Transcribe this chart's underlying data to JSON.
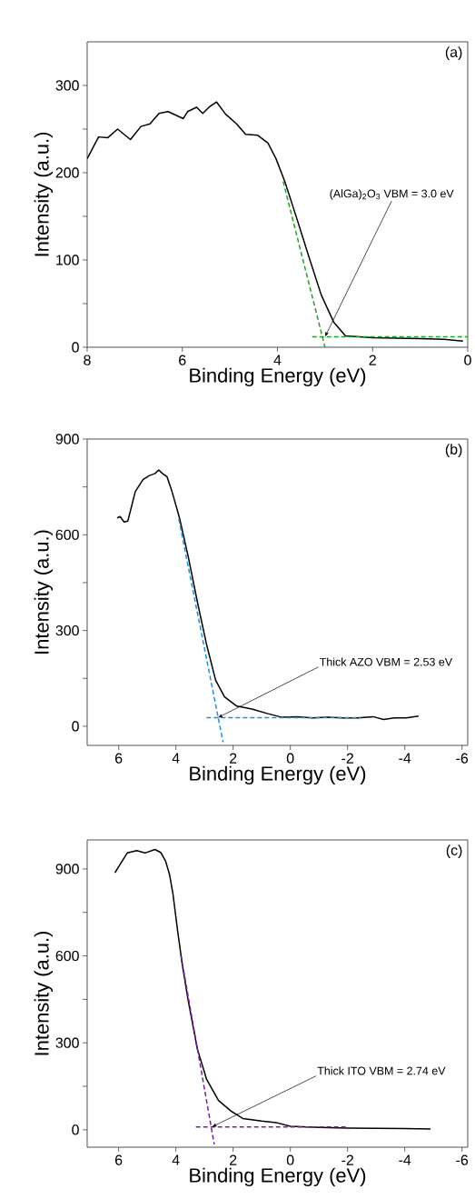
{
  "chart_data": [
    {
      "type": "line",
      "xlabel": "Binding Energy (eV)",
      "ylabel": "Intensity (a.u.)",
      "xlim": [
        8,
        0
      ],
      "ylim": [
        0,
        350
      ],
      "xticks": [
        8,
        6,
        4,
        2,
        0
      ],
      "yticks": [
        0,
        {
          "value": 50,
          "label": null
        },
        100,
        {
          "value": 150,
          "label": null
        },
        200,
        {
          "value": 250,
          "label": null
        },
        300
      ],
      "series": [
        {
          "color": "#000000",
          "x": [
            8,
            7.76,
            7.57,
            7.36,
            7.09,
            6.87,
            6.68,
            6.49,
            6.3,
            5.98,
            5.89,
            5.7,
            5.57,
            5.44,
            5.28,
            5.09,
            4.86,
            4.67,
            4.42,
            4.2,
            4.03,
            3.84,
            3.59,
            3.33,
            3.08,
            2.82,
            2.57,
            2.0,
            1.0,
            0.5,
            0.1
          ],
          "values": [
            216,
            241,
            240,
            250,
            238,
            253,
            256,
            268,
            270,
            262,
            270,
            275,
            268,
            275,
            281,
            267,
            256,
            244,
            243,
            234,
            216,
            189,
            147,
            102,
            60,
            29,
            13,
            11,
            10,
            9,
            7
          ]
        },
        {
          "color": "#22a022",
          "line_style": "dashed",
          "x": [
            3.88,
            3.0
          ],
          "values": [
            190,
            0
          ]
        },
        {
          "color": "#22a022",
          "line_style": "dashed",
          "x": [
            3.27,
            0
          ],
          "values": [
            12,
            12
          ]
        }
      ],
      "annotations": [
        "(a)",
        {
          "text": "(AlGa)$_{2}$O$_{3}$ VBM = 3.0 eV",
          "x": 3.0,
          "y": 12
        }
      ]
    },
    {
      "type": "line",
      "xlabel": "Binding Energy (eV)",
      "ylabel": "Intensity (a.u.)",
      "xlim": [
        7.1,
        -6.2
      ],
      "ylim": [
        -60,
        900
      ],
      "xticks": [
        6,
        4,
        2,
        0,
        -2,
        -4,
        -6
      ],
      "yticks": [
        0,
        {
          "value": 150,
          "label": null
        },
        300,
        {
          "value": 450,
          "label": null
        },
        600,
        {
          "value": 750,
          "label": null
        },
        900
      ],
      "series": [
        {
          "color": "#000000",
          "x": [
            6.05,
            5.95,
            5.81,
            5.68,
            5.58,
            5.42,
            5.15,
            4.94,
            4.73,
            4.6,
            4.47,
            4.31,
            4.15,
            3.88,
            3.57,
            3.25,
            2.93,
            2.61,
            2.3,
            1.87,
            1.34,
            0.81,
            0.29,
            -0.24,
            -0.77,
            -1.3,
            -1.83,
            -2.36,
            -2.89,
            -3.26,
            -3.63,
            -4.05,
            -4.48
          ],
          "values": [
            653,
            657,
            640,
            643,
            678,
            735,
            773,
            785,
            792,
            803,
            792,
            782,
            740,
            655,
            532,
            390,
            257,
            144,
            92,
            63,
            54,
            40,
            28,
            30,
            26,
            28,
            26,
            26,
            30,
            21,
            26,
            26,
            32
          ]
        },
        {
          "color": "#1f8fd6",
          "line_style": "dashed",
          "x": [
            3.9,
            2.35
          ],
          "values": [
            650,
            -50
          ]
        },
        {
          "color": "#1f8fd6",
          "line_style": "dashed",
          "x": [
            2.93,
            -2.47
          ],
          "values": [
            27,
            27
          ]
        }
      ],
      "annotations": [
        "(b)",
        {
          "text": "Thick AZO VBM = 2.53 eV",
          "x": 2.53,
          "y": 27
        }
      ]
    },
    {
      "type": "line",
      "xlabel": "Binding Energy (eV)",
      "ylabel": "Intensity (a.u.)",
      "xlim": [
        7.1,
        -6.2
      ],
      "ylim": [
        -60,
        1000
      ],
      "xticks": [
        6,
        4,
        2,
        0,
        -2,
        -4,
        -6
      ],
      "yticks": [
        0,
        {
          "value": 150,
          "label": null
        },
        300,
        {
          "value": 450,
          "label": null
        },
        600,
        {
          "value": 750,
          "label": null
        },
        900
      ],
      "series": [
        {
          "color": "#000000",
          "x": [
            6.13,
            5.95,
            5.7,
            5.37,
            5.08,
            4.73,
            4.52,
            4.36,
            4.22,
            4.1,
            3.94,
            3.78,
            3.57,
            3.25,
            2.93,
            2.51,
            2.08,
            1.66,
            1.0,
            0.5,
            0,
            -1,
            -2,
            -3,
            -4,
            -4.9
          ],
          "values": [
            887,
            916,
            955,
            963,
            955,
            967,
            956,
            927,
            880,
            812,
            687,
            572,
            446,
            279,
            175,
            101,
            65,
            39,
            30,
            25,
            12,
            8,
            6,
            5,
            4,
            3
          ]
        },
        {
          "color": "#7b1fa2",
          "line_style": "dashed",
          "x": [
            3.82,
            2.66
          ],
          "values": [
            600,
            -50
          ]
        },
        {
          "color": "#7b1fa2",
          "line_style": "dashed",
          "x": [
            3.3,
            -2.0
          ],
          "values": [
            10,
            10
          ]
        }
      ],
      "annotations": [
        "(c)",
        {
          "text": "Thick ITO VBM = 2.74 eV",
          "x": 2.74,
          "y": 10
        }
      ]
    }
  ]
}
